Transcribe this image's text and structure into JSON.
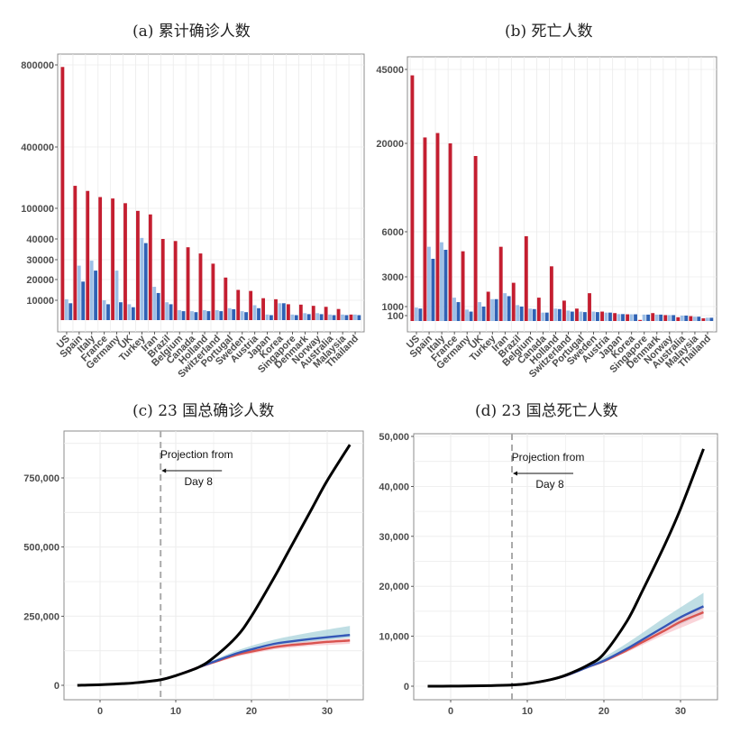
{
  "colors": {
    "actual": "#c41e30",
    "light_blue": "#9dbfe6",
    "dark_blue": "#2f62b5",
    "line_actual": "#000000",
    "line_blue": "#3557b7",
    "line_red": "#d9534f",
    "band_blue": "#a9d3db",
    "band_red": "#f6b8c0",
    "grid": "#ebebeb",
    "border": "#8c8c8c"
  },
  "chart_data": [
    {
      "id": "a",
      "type": "bar",
      "title": "(a) 累计确诊人数",
      "categories": [
        "US",
        "Spain",
        "Italy",
        "France",
        "Germany",
        "UK",
        "Turkey",
        "Iran",
        "Brazil",
        "Belgium",
        "Canada",
        "Holland",
        "Switzerland",
        "Portugal",
        "Sweden",
        "Austria",
        "Japan",
        "Korea",
        "Singapore",
        "Denmark",
        "Norway",
        "Australia",
        "Malaysia",
        "Thailand"
      ],
      "yticks": [
        10000,
        20000,
        30000,
        40000,
        100000,
        400000,
        800000
      ],
      "ytick_labels": [
        "10000",
        "20000",
        "30000",
        "40000",
        "100000",
        "400000",
        "800000"
      ],
      "series": [
        {
          "name": "actual",
          "values": [
            790000,
            210000,
            185000,
            155000,
            148000,
            125000,
            95000,
            88000,
            40000,
            39000,
            36000,
            33000,
            28000,
            21000,
            15000,
            14500,
            11000,
            10500,
            8000,
            7800,
            7200,
            6700,
            5600,
            2800
          ]
        },
        {
          "name": "projection-light",
          "values": [
            10500,
            27000,
            29500,
            10000,
            24500,
            8000,
            42000,
            16500,
            9000,
            5000,
            4500,
            5000,
            5000,
            6000,
            4500,
            7500,
            2800,
            8500,
            2800,
            3500,
            3500,
            2800,
            2800,
            2800
          ]
        },
        {
          "name": "projection-dark",
          "values": [
            8500,
            19000,
            24500,
            8000,
            9000,
            6500,
            38000,
            13500,
            8000,
            4500,
            4000,
            4500,
            4500,
            5500,
            4000,
            6000,
            2500,
            8500,
            2500,
            3000,
            3000,
            2500,
            2500,
            2500
          ]
        }
      ]
    },
    {
      "id": "b",
      "type": "bar",
      "title": "(b) 死亡人数",
      "categories": [
        "US",
        "Spain",
        "Italy",
        "France",
        "Germany",
        "UK",
        "Turkey",
        "Iran",
        "Brazil",
        "Belgium",
        "Canada",
        "Holland",
        "Switzerland",
        "Portugal",
        "Sweden",
        "Austria",
        "Japan",
        "Korea",
        "Singapore",
        "Denmark",
        "Norway",
        "Australia",
        "Malaysia",
        "Thailand"
      ],
      "yticks": [
        100,
        1000,
        3000,
        6000,
        20000,
        45000
      ],
      "ytick_labels": [
        "100",
        "1000",
        "3000",
        "6000",
        "20000",
        "45000"
      ],
      "series": [
        {
          "name": "actual",
          "values": [
            43000,
            22000,
            23500,
            20000,
            4700,
            18000,
            2000,
            5000,
            2600,
            5700,
            1600,
            3700,
            1400,
            800,
            1900,
            500,
            350,
            230,
            20,
            350,
            150,
            70,
            90,
            50
          ]
        },
        {
          "name": "projection-light",
          "values": [
            900,
            5000,
            5300,
            1600,
            700,
            1300,
            1500,
            1900,
            1100,
            800,
            400,
            800,
            600,
            500,
            500,
            400,
            250,
            230,
            200,
            200,
            150,
            100,
            80,
            60
          ]
        },
        {
          "name": "projection-dark",
          "values": [
            800,
            4200,
            4800,
            1300,
            500,
            1000,
            1500,
            1700,
            1000,
            750,
            400,
            750,
            500,
            450,
            450,
            400,
            250,
            230,
            200,
            200,
            150,
            100,
            80,
            60
          ]
        }
      ]
    },
    {
      "id": "c",
      "type": "line",
      "title": "(c) 23 国总确诊人数",
      "xlim": [
        -4.5,
        35
      ],
      "ylim": [
        -50000,
        920000
      ],
      "xticks": [
        0,
        10,
        20,
        30
      ],
      "xtick_labels": [
        "0",
        "10",
        "20",
        "30"
      ],
      "yticks": [
        0,
        250000,
        500000,
        750000
      ],
      "ytick_labels": [
        "0",
        "250,000",
        "500,000",
        "750,000"
      ],
      "vline_x": 8,
      "annotation": {
        "line1": "Projection from",
        "line2": "Day 8"
      },
      "series": [
        {
          "name": "actual",
          "x": [
            -3,
            0,
            3,
            5,
            8,
            10,
            13,
            15,
            18,
            20,
            23,
            25,
            28,
            30,
            33
          ],
          "y": [
            0,
            2000,
            6000,
            10000,
            20000,
            35000,
            65000,
            100000,
            175000,
            250000,
            390000,
            490000,
            640000,
            740000,
            870000
          ]
        },
        {
          "name": "projection-blue",
          "x": [
            8,
            10,
            13,
            15,
            18,
            20,
            23,
            25,
            28,
            30,
            33
          ],
          "y": [
            20000,
            35000,
            65000,
            85000,
            115000,
            130000,
            150000,
            158000,
            168000,
            174000,
            182000
          ]
        },
        {
          "name": "projection-red",
          "x": [
            8,
            10,
            13,
            15,
            18,
            20,
            23,
            25,
            28,
            30,
            33
          ],
          "y": [
            20000,
            35000,
            65000,
            83000,
            110000,
            122000,
            138000,
            145000,
            152000,
            157000,
            162000
          ]
        },
        {
          "name": "band-blue",
          "x": [
            8,
            13,
            18,
            23,
            28,
            33
          ],
          "lower": [
            20000,
            63000,
            108000,
            140000,
            158000,
            172000
          ],
          "upper": [
            20000,
            68000,
            125000,
            165000,
            192000,
            215000
          ]
        },
        {
          "name": "band-red",
          "x": [
            8,
            13,
            18,
            23,
            28,
            33
          ],
          "lower": [
            20000,
            62000,
            104000,
            130000,
            143000,
            150000
          ],
          "upper": [
            20000,
            66000,
            115000,
            145000,
            160000,
            170000
          ]
        }
      ]
    },
    {
      "id": "d",
      "type": "line",
      "title": "(d) 23 国总死亡人数",
      "xlim": [
        -4.8,
        35
      ],
      "ylim": [
        -2200,
        50000
      ],
      "xticks": [
        0,
        10,
        20,
        30
      ],
      "xtick_labels": [
        "0",
        "10",
        "20",
        "30"
      ],
      "yticks": [
        0,
        10000,
        20000,
        30000,
        40000,
        50000
      ],
      "ytick_labels": [
        "0",
        "10,000",
        "20,000",
        "30,000",
        "40,000",
        "50,000"
      ],
      "vline_x": 8,
      "annotation": {
        "line1": "Projection from",
        "line2": "Day 8"
      },
      "series": [
        {
          "name": "actual",
          "x": [
            -3,
            0,
            3,
            5,
            8,
            10,
            13,
            15,
            18,
            20,
            23,
            25,
            28,
            30,
            33
          ],
          "y": [
            0,
            20,
            60,
            120,
            250,
            500,
            1300,
            2200,
            4300,
            6500,
            13000,
            19000,
            28500,
            35500,
            47500
          ]
        },
        {
          "name": "projection-blue",
          "x": [
            8,
            10,
            13,
            15,
            18,
            20,
            23,
            25,
            28,
            30,
            33
          ],
          "y": [
            250,
            500,
            1300,
            2100,
            3900,
            5100,
            7500,
            9300,
            12000,
            13800,
            16000
          ]
        },
        {
          "name": "projection-red",
          "x": [
            8,
            10,
            13,
            15,
            18,
            20,
            23,
            25,
            28,
            30,
            33
          ],
          "y": [
            250,
            500,
            1300,
            2100,
            3900,
            5000,
            7200,
            8800,
            11200,
            12900,
            14800
          ]
        },
        {
          "name": "band-blue",
          "x": [
            8,
            13,
            18,
            23,
            28,
            33
          ],
          "lower": [
            250,
            1300,
            3800,
            7000,
            11000,
            14500
          ],
          "upper": [
            250,
            1400,
            4200,
            8600,
            13800,
            18700
          ]
        },
        {
          "name": "band-red",
          "x": [
            8,
            13,
            18,
            23,
            28,
            33
          ],
          "lower": [
            250,
            1250,
            3700,
            6800,
            10400,
            13600
          ],
          "upper": [
            250,
            1350,
            4000,
            7600,
            12000,
            16000
          ]
        }
      ]
    }
  ]
}
